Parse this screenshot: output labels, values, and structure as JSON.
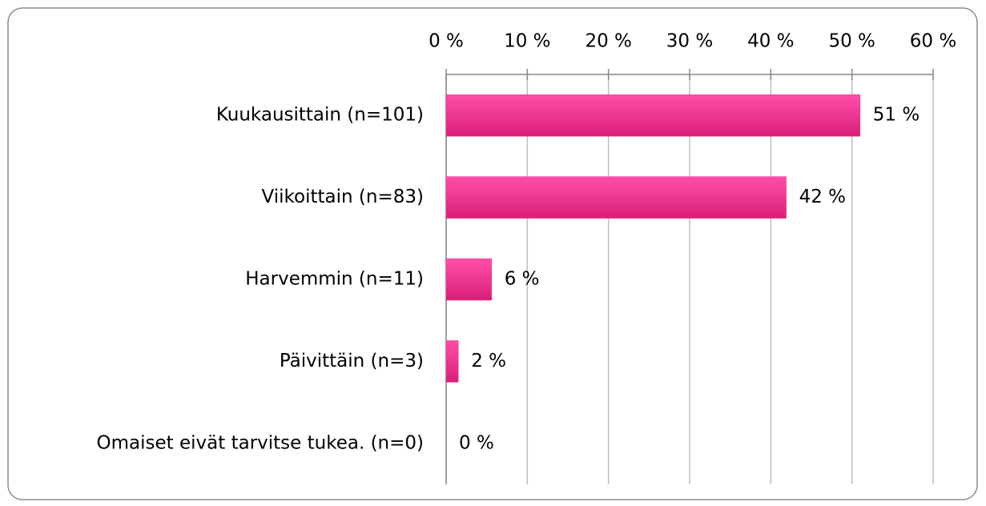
{
  "chart_data": {
    "type": "bar",
    "orientation": "horizontal",
    "categories": [
      "Kuukausittain (n=101)",
      "Viikoittain (n=83)",
      "Harvemmin (n=11)",
      "Päivittäin (n=3)",
      "Omaiset eivät tarvitse tukea. (n=0)"
    ],
    "values": [
      51.0,
      41.9,
      5.6,
      1.5,
      0
    ],
    "value_labels": [
      "51 %",
      "42 %",
      "6 %",
      "2 %",
      "0 %"
    ],
    "color": "#f0338f",
    "xlim": [
      0,
      60
    ],
    "xticks": [
      {
        "value": 0,
        "label": "0 %"
      },
      {
        "value": 10,
        "label": "10 %"
      },
      {
        "value": 20,
        "label": "20 %"
      },
      {
        "value": 30,
        "label": "30 %"
      },
      {
        "value": 40,
        "label": "40 %"
      },
      {
        "value": 50,
        "label": "50 %"
      },
      {
        "value": 60,
        "label": "60 %"
      }
    ],
    "grid": true
  }
}
